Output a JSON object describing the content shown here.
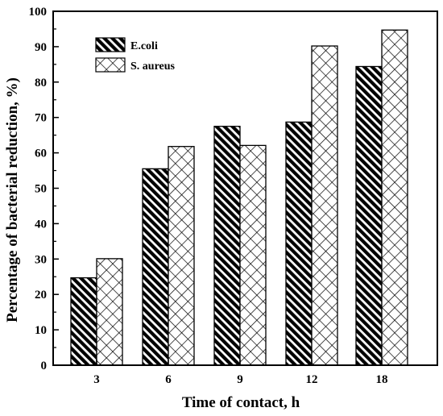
{
  "chart_data": {
    "type": "bar",
    "title": "",
    "xlabel": "Time of contact, h",
    "ylabel": "Percentage of bacterial reduction, %)",
    "categories": [
      "3",
      "6",
      "9",
      "12",
      "18"
    ],
    "ylim": [
      0,
      100
    ],
    "yticks": [
      "0",
      "10",
      "20",
      "30",
      "40",
      "50",
      "60",
      "70",
      "80",
      "90",
      "100"
    ],
    "grid": false,
    "legend_position": "top-left",
    "series": [
      {
        "name": "E.coli",
        "values": [
          24.7,
          55.5,
          67.5,
          68.7,
          84.4
        ],
        "pattern": "diagonal-hatch",
        "color": "#000000"
      },
      {
        "name": "S. aureus",
        "values": [
          30.1,
          61.8,
          62.1,
          90.2,
          94.7
        ],
        "pattern": "cross-hatch",
        "color": "#000000"
      }
    ]
  }
}
